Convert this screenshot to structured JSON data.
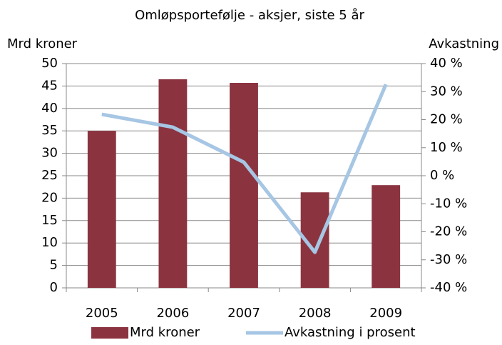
{
  "chart_data": {
    "type": "bar",
    "title": "Omløpsporteføljе - aksjer, siste 5 år",
    "y_label": "Mrd kroner",
    "y2_label": "Avkastning",
    "categories": [
      "2005",
      "2006",
      "2007",
      "2008",
      "2009"
    ],
    "series": [
      {
        "name": "Mrd kroner",
        "type": "bar",
        "color": "#8b3440",
        "values": [
          35.0,
          46.5,
          45.7,
          21.3,
          22.9
        ]
      },
      {
        "name": "Avkastning i prosent",
        "type": "line",
        "axis": "y2",
        "color": "#a6c6e4",
        "values": [
          21.9,
          17.3,
          4.8,
          -27.3,
          32.6
        ]
      }
    ],
    "ylim": [
      0,
      50
    ],
    "yticks": [
      0,
      5,
      10,
      15,
      20,
      25,
      30,
      35,
      40,
      45,
      50
    ],
    "y2lim": [
      -40,
      40
    ],
    "y2ticks": [
      {
        "value": -40,
        "label": "-40 %"
      },
      {
        "value": -30,
        "label": "-30 %"
      },
      {
        "value": -20,
        "label": "-20 %"
      },
      {
        "value": -10,
        "label": "-10 %"
      },
      {
        "value": 0,
        "label": "0 %"
      },
      {
        "value": 10,
        "label": "10 %"
      },
      {
        "value": 20,
        "label": "20 %"
      },
      {
        "value": 30,
        "label": "30 %"
      },
      {
        "value": 40,
        "label": "40 %"
      }
    ],
    "grid": true,
    "legend": "bottom"
  }
}
